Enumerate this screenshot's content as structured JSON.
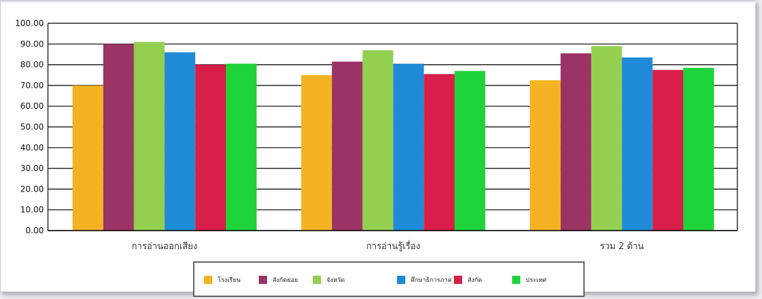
{
  "chart_data": {
    "type": "bar",
    "categories": [
      "การอ่านออกเสียง",
      "การอ่านรู้เรื่อง",
      "รวม 2 ด้าน"
    ],
    "series": [
      {
        "name": "โรงเรียน",
        "color": "#f5b223",
        "values": [
          70.0,
          75.0,
          72.5
        ]
      },
      {
        "name": "สังกัดย่อย",
        "color": "#9b3364",
        "values": [
          90.0,
          81.5,
          85.5
        ]
      },
      {
        "name": "จังหวัด",
        "color": "#93d050",
        "values": [
          91.0,
          87.0,
          89.0
        ]
      },
      {
        "name": "ศึกษาธิการภาค",
        "color": "#1f8bd8",
        "values": [
          86.0,
          80.5,
          83.5
        ]
      },
      {
        "name": "สังกัด",
        "color": "#d81f49",
        "values": [
          80.0,
          75.5,
          77.5
        ]
      },
      {
        "name": "ประเทศ",
        "color": "#1ed43a",
        "values": [
          80.5,
          77.0,
          78.5
        ]
      }
    ],
    "ylim": [
      0,
      100
    ],
    "yticks": [
      "0.00",
      "10.00",
      "20.00",
      "30.00",
      "40.00",
      "50.00",
      "60.00",
      "70.00",
      "80.00",
      "90.00",
      "100.00"
    ],
    "grid": true,
    "legend_position": "bottom"
  }
}
